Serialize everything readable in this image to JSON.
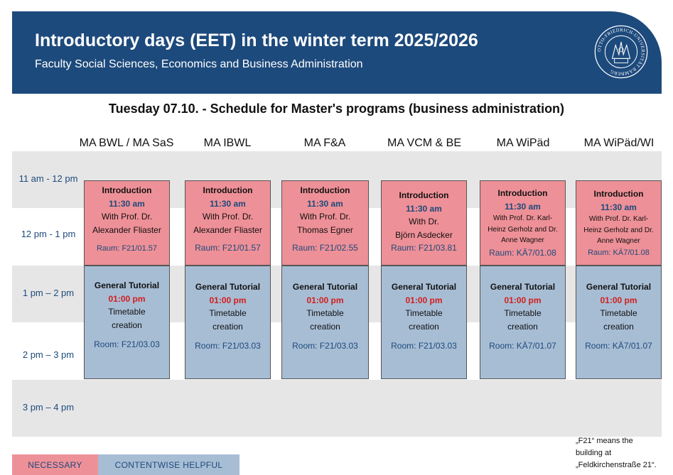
{
  "header": {
    "title": "Introductory days (EET) in the winter term 2025/2026",
    "subtitle": "Faculty Social Sciences, Economics and Business Administration",
    "seal_text": "OTTO-FRIEDRICH-UNIVERSITÄT BAMBERG"
  },
  "schedule_heading": "Tuesday 07.10. - Schedule for Master's programs (business administration)",
  "times": [
    "11 am - 12 pm",
    "12 pm - 1 pm",
    "1 pm – 2 pm",
    "2 pm – 3 pm",
    "3 pm – 4 pm"
  ],
  "programs": [
    "MA BWL / MA SaS",
    "MA IBWL",
    "MA F&A",
    "MA VCM & BE",
    "MA WiPäd",
    "MA WiPäd/WI"
  ],
  "morning": [
    {
      "title": "Introduction",
      "time": "11:30 am",
      "line1": "With Prof. Dr.",
      "line2": "Alexander Fliaster",
      "room": "Raum: F21/01.57"
    },
    {
      "title": "Introduction",
      "time": "11:30 am",
      "line1": "With Prof. Dr.",
      "line2": "Alexander Fliaster",
      "room": "Raum: F21/01.57"
    },
    {
      "title": "Introduction",
      "time": "11:30 am",
      "line1": "With Prof. Dr.",
      "line2": "Thomas Egner",
      "room": "Raum: F21/02.55"
    },
    {
      "title": "Introduction",
      "time": "11:30 am",
      "line1": "With Dr.",
      "line2": "Björn Asdecker",
      "room": "Raum: F21/03.81"
    },
    {
      "title": "Introduction",
      "time": "11:30 am",
      "line1": "With Prof. Dr. Karl-",
      "line2": "Heinz Gerholz and Dr.",
      "line3": "Anne Wagner",
      "room": "Raum: KÄ7/01.08"
    },
    {
      "title": "Introduction",
      "time": "11:30 am",
      "line1": "With Prof. Dr. Karl-",
      "line2": "Heinz Gerholz and Dr.",
      "line3": "Anne Wagner",
      "room": "Raum: KÄ7/01.08"
    }
  ],
  "afternoon": [
    {
      "title": "General Tutorial",
      "time": "01:00 pm",
      "line1": "Timetable",
      "line2": "creation",
      "room": "Room: F21/03.03"
    },
    {
      "title": "General Tutorial",
      "time": "01:00 pm",
      "line1": "Timetable",
      "line2": "creation",
      "room": "Room: F21/03.03"
    },
    {
      "title": "General Tutorial",
      "time": "01:00 pm",
      "line1": "Timetable",
      "line2": "creation",
      "room": "Room: F21/03.03"
    },
    {
      "title": "General Tutorial",
      "time": "01:00 pm",
      "line1": "Timetable",
      "line2": "creation",
      "room": "Room: F21/03.03"
    },
    {
      "title": "General Tutorial",
      "time": "01:00 pm",
      "line1": "Timetable",
      "line2": "creation",
      "room": "Room: KÄ7/01.07"
    },
    {
      "title": "General Tutorial",
      "time": "01:00 pm",
      "line1": "Timetable",
      "line2": "creation",
      "room": "Room: KÄ7/01.07"
    }
  ],
  "legend": {
    "necessary": "NECESSARY",
    "helpful": "CONTENTWISE HELPFUL"
  },
  "footnote": [
    "„F21“ means the",
    "building at",
    "„Feldkirchenstraße 21“."
  ],
  "colors": {
    "brand_blue": "#1d4a7c",
    "necessary": "#ee9097",
    "helpful": "#a7bdd4",
    "band": "#e6e6e6",
    "tutorial_time": "#d21e1e"
  }
}
